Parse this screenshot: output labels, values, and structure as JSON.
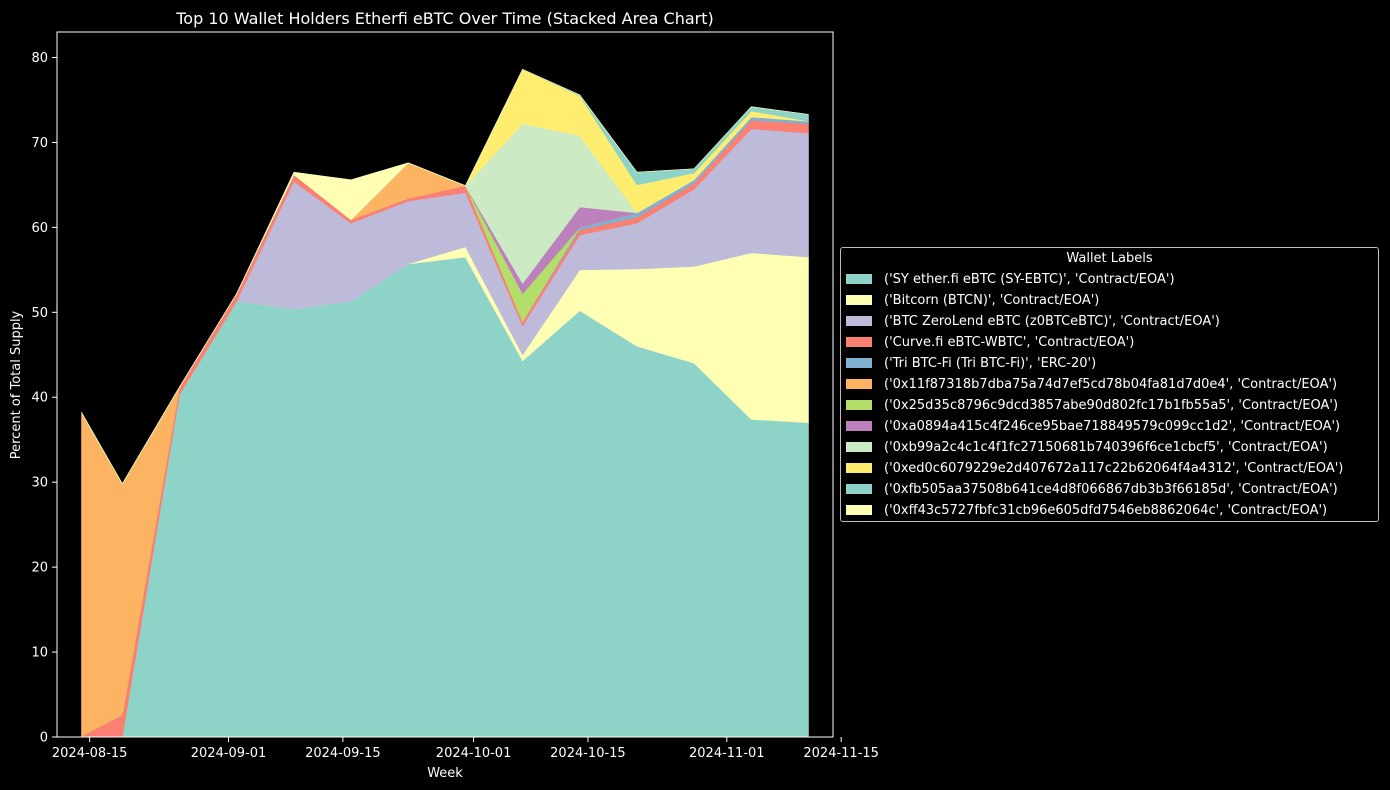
{
  "chart_data": {
    "type": "area",
    "stacked": true,
    "title": "Top 10 Wallet Holders Etherfi eBTC Over Time (Stacked Area Chart)",
    "xlabel": "Week",
    "ylabel": "Percent of Total Supply",
    "x": [
      "2024-08-14",
      "2024-08-19",
      "2024-08-26",
      "2024-09-02",
      "2024-09-09",
      "2024-09-16",
      "2024-09-23",
      "2024-09-30",
      "2024-10-07",
      "2024-10-14",
      "2024-10-21",
      "2024-10-28",
      "2024-11-04",
      "2024-11-11"
    ],
    "xticks": [
      "2024-08-15",
      "2024-09-01",
      "2024-09-15",
      "2024-10-01",
      "2024-10-15",
      "2024-11-01",
      "2024-11-15"
    ],
    "xlim": [
      "2024-08-11",
      "2024-11-14"
    ],
    "ylim": [
      0,
      83
    ],
    "yticks": [
      0,
      10,
      20,
      30,
      40,
      50,
      60,
      70,
      80
    ],
    "grid": false,
    "legend_title": "Wallet Labels",
    "legend_position": "right",
    "series": [
      {
        "name": "('SY ether.fi eBTC (SY-EBTC)', 'Contract/EOA')",
        "color": "#8dd3c7",
        "values": [
          0,
          0,
          40.3,
          51.3,
          50.4,
          51.3,
          55.7,
          56.5,
          44.3,
          50.2,
          46.0,
          44.0,
          37.4,
          37.0
        ]
      },
      {
        "name": "('Bitcorn (BTCN)', 'Contract/EOA')",
        "color": "#ffffb3",
        "values": [
          0,
          0,
          0,
          0,
          0,
          0,
          0,
          1.2,
          0.7,
          4.8,
          9.1,
          11.4,
          19.6,
          19.5
        ]
      },
      {
        "name": "('BTC ZeroLend eBTC (z0BTCeBTC)', 'Contract/EOA')",
        "color": "#bebada",
        "values": [
          0,
          0,
          0,
          0,
          15.0,
          9.2,
          7.4,
          6.4,
          3.4,
          4.1,
          5.4,
          9.1,
          14.6,
          14.6
        ]
      },
      {
        "name": "('Curve.fi eBTC-WBTC', 'Contract/EOA')",
        "color": "#fb8072",
        "values": [
          0.1,
          2.6,
          0.9,
          0.9,
          0.8,
          0.4,
          0.3,
          0.8,
          0.5,
          0.6,
          0.7,
          0.7,
          1.0,
          1.1
        ]
      },
      {
        "name": "('Tri BTC-Fi (Tri BTC-Fi)', 'ERC-20')",
        "color": "#80b1d3",
        "values": [
          0,
          0,
          0,
          0,
          0,
          0,
          0,
          0,
          0,
          0.3,
          0.5,
          0.4,
          0.4,
          0.3
        ]
      },
      {
        "name": "('0x11f87318b7dba75a74d7ef5cd78b04fa81d7d0e4', 'Contract/EOA')",
        "color": "#fdb462",
        "values": [
          38.1,
          27.2,
          0,
          0,
          0,
          0,
          4.2,
          0,
          0,
          0,
          0,
          0,
          0,
          0
        ]
      },
      {
        "name": "('0x25d35c8796c9dcd3857abe90d802fc17b1fb55a5', 'Contract/EOA')",
        "color": "#b3de69",
        "values": [
          0,
          0,
          0,
          0,
          0,
          0,
          0,
          0,
          3.3,
          0,
          0,
          0,
          0,
          0
        ]
      },
      {
        "name": "('0xa0894a415c4f246ce95bae718849579c099cc1d2', 'Contract/EOA')",
        "color": "#bc80bd",
        "values": [
          0,
          0,
          0,
          0,
          0,
          0,
          0,
          0,
          1.2,
          2.4,
          0,
          0,
          0,
          0
        ]
      },
      {
        "name": "('0xb99a2c4c1c4f1fc27150681b740396f6ce1cbcf5', 'Contract/EOA')",
        "color": "#ccebc5",
        "values": [
          0,
          0,
          0,
          0,
          0,
          0,
          0,
          0,
          18.8,
          8.4,
          0,
          0,
          0,
          0
        ]
      },
      {
        "name": "('0xed0c6079229e2d407672a117c22b62064f4a4312', 'Contract/EOA')",
        "color": "#ffed6f",
        "values": [
          0,
          0,
          0,
          0,
          0,
          0,
          0,
          0,
          6.4,
          4.7,
          3.3,
          0.8,
          0.7,
          0
        ]
      },
      {
        "name": "('0xfb505aa37508b641ce4d8f066867db3b3f66185d', 'Contract/EOA')",
        "color": "#8dd3c7",
        "values": [
          0,
          0,
          0,
          0,
          0,
          0,
          0,
          0,
          0,
          0.1,
          1.5,
          0.5,
          0.5,
          0.8
        ]
      },
      {
        "name": "('0xff43c5727fbfc31cb96e605dfd7546eb8862064c', 'Contract/EOA')",
        "color": "#ffffb3",
        "values": [
          0,
          0,
          0,
          0,
          0.3,
          4.7,
          0,
          0,
          0,
          0,
          0,
          0,
          0,
          0
        ]
      }
    ]
  }
}
